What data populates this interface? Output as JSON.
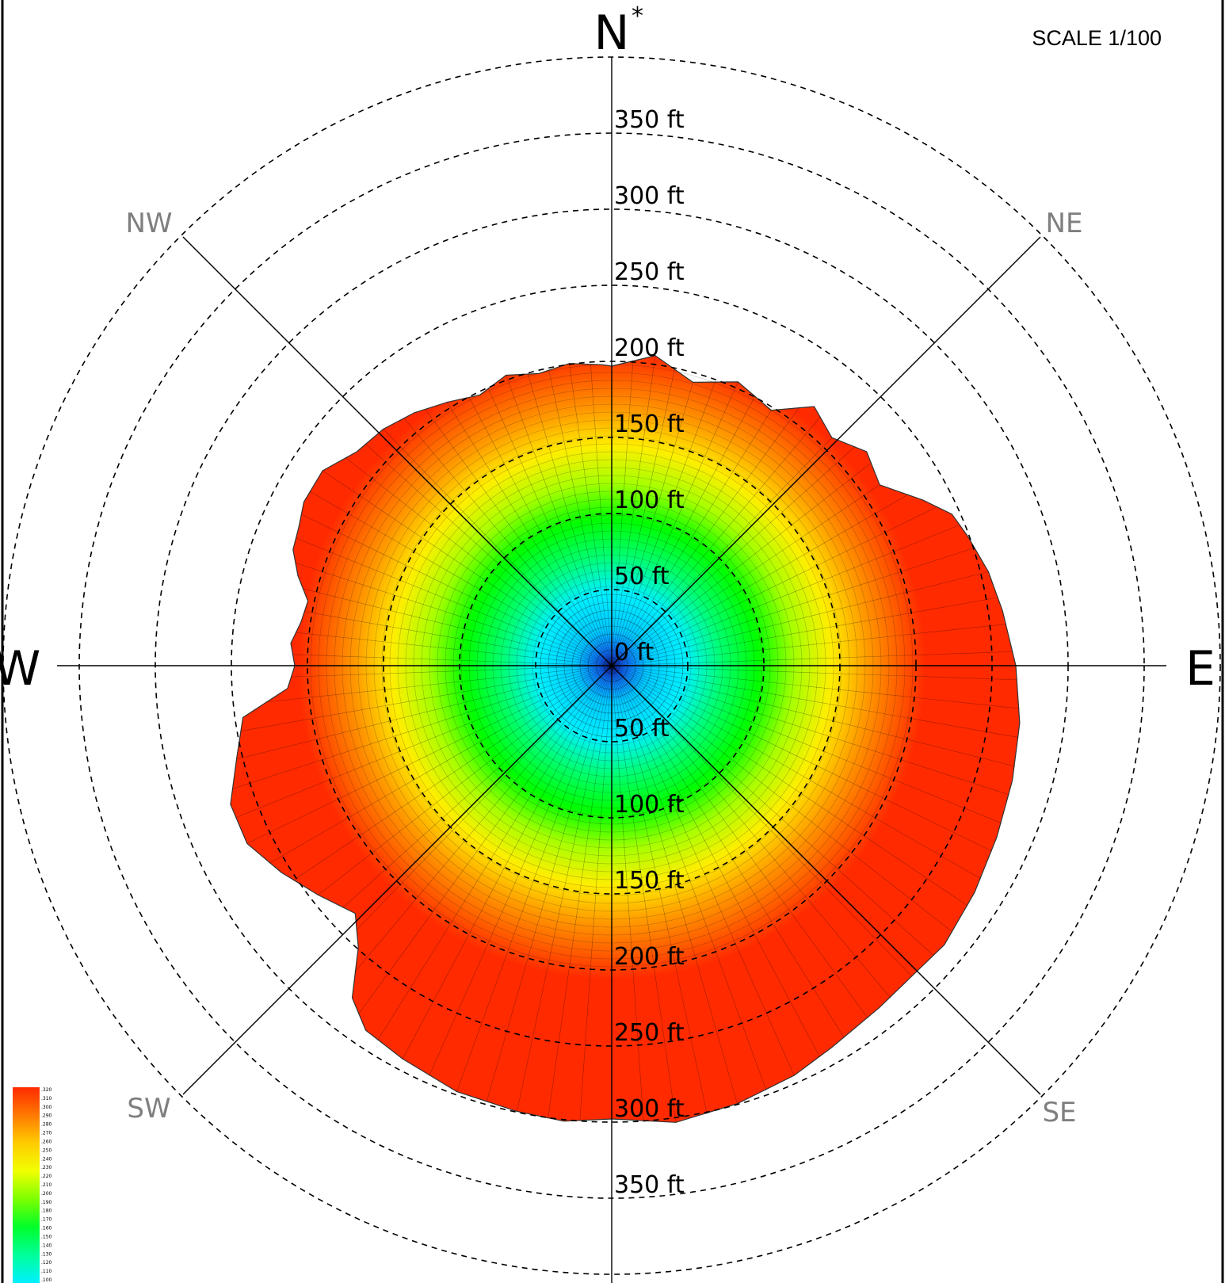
{
  "scale_label": "SCALE 1/100",
  "cardinals": {
    "north": "N",
    "north_marker": "*",
    "east": "E",
    "west": "W"
  },
  "intercardinals": {
    "ne": "NE",
    "nw": "NW",
    "se": "SE",
    "sw": "SW"
  },
  "range_labels": {
    "north": [
      "0 ft",
      "50 ft",
      "100 ft",
      "150 ft",
      "200 ft",
      "250 ft",
      "300 ft",
      "350 ft"
    ],
    "south": [
      "50 ft",
      "100 ft",
      "150 ft",
      "200 ft",
      "250 ft",
      "300 ft",
      "350 ft"
    ]
  },
  "legend": {
    "values": [
      ".320",
      ".310",
      ".300",
      ".290",
      ".280",
      ".270",
      ".260",
      ".250",
      ".240",
      ".230",
      ".220",
      ".210",
      ".200",
      ".190",
      ".180",
      ".170",
      ".160",
      ".150",
      ".140",
      ".130",
      ".120",
      ".110",
      ".100"
    ],
    "colors": [
      "#ff2a00",
      "#ff7a00",
      "#ffcc00",
      "#f0ff00",
      "#7cff00",
      "#00ff2a",
      "#00ff9a",
      "#00f0ff"
    ]
  },
  "plot_colors": {
    "center": "#1a3cff",
    "ring_50": "#00c8ff",
    "ring_100": "#00f0ff",
    "ring_150": "#00ff70",
    "ring_200": "#00ff00",
    "ring_250": "#a6ff00",
    "ring_300": "#ffee00",
    "ring_350": "#ff9900",
    "ring_400": "#ff2a00"
  }
}
